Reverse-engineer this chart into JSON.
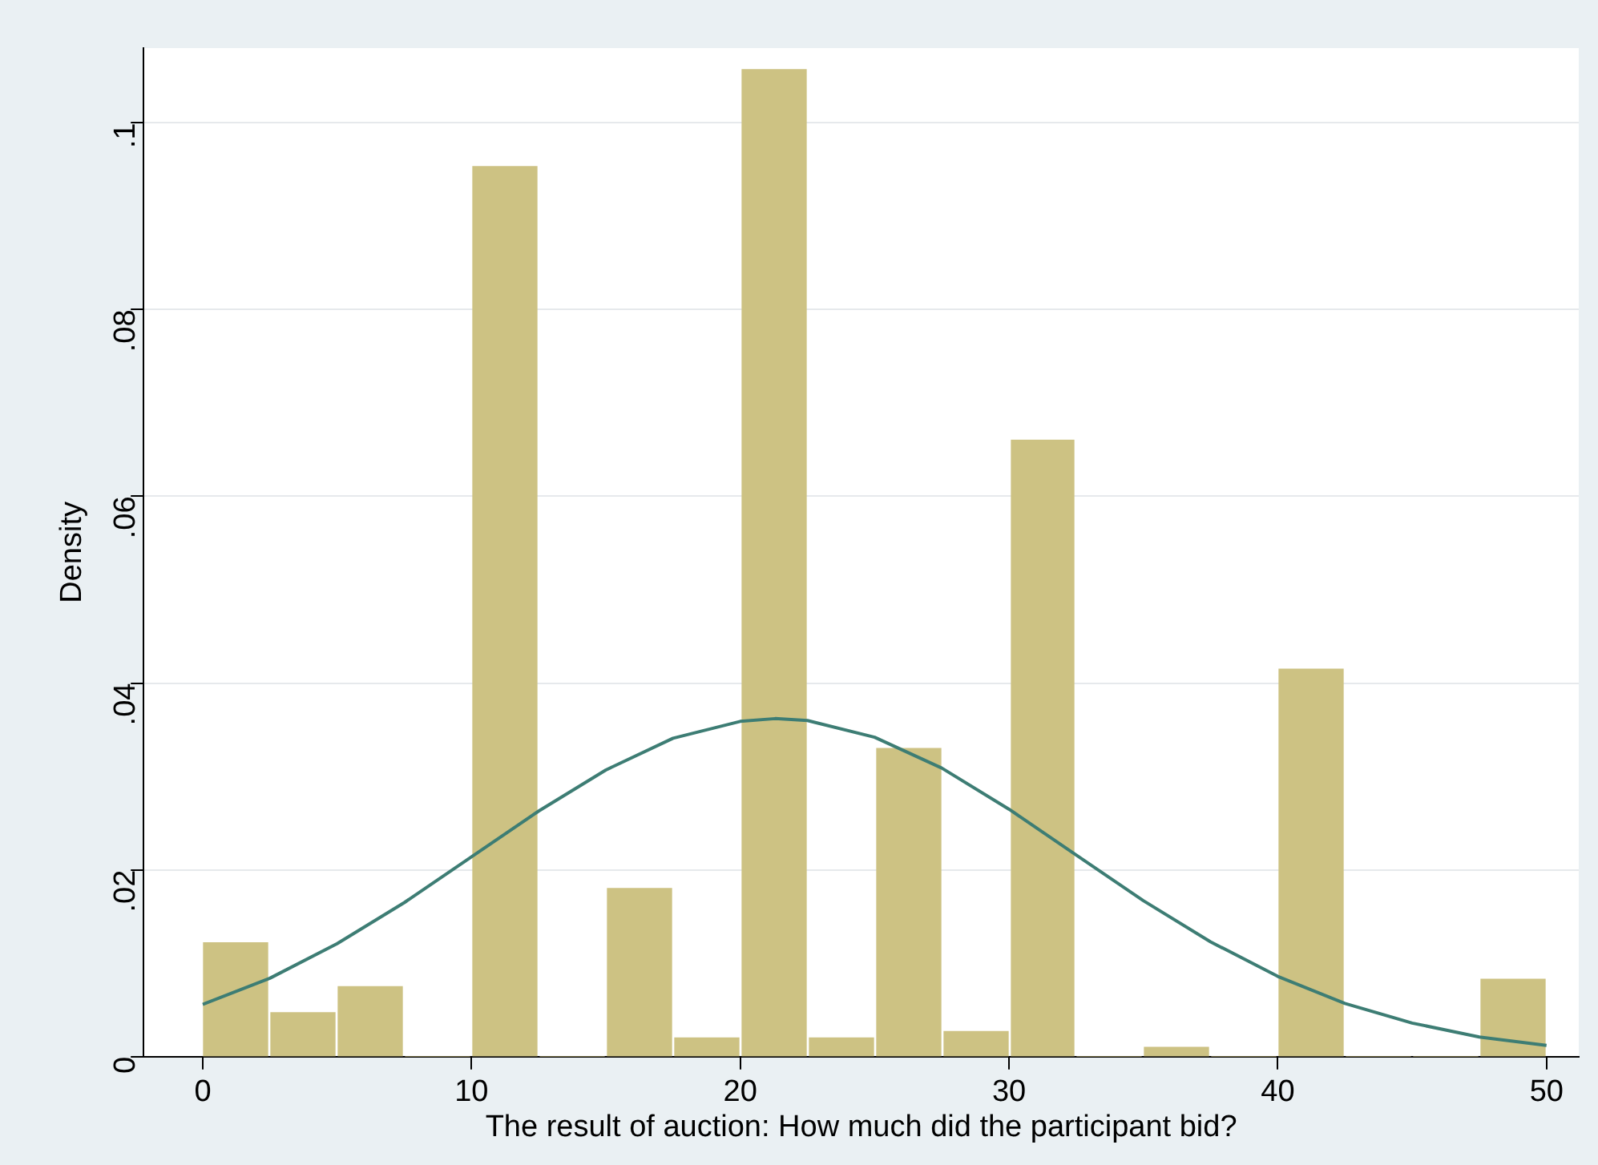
{
  "chart_data": {
    "type": "histogram",
    "xlabel": "The result of auction: How much did the participant bid?",
    "ylabel": "Density",
    "bins": [
      0,
      2.5,
      5,
      7.5,
      10,
      12.5,
      15,
      17.5,
      20,
      22.5,
      25,
      27.5,
      30,
      32.5,
      35,
      37.5,
      40,
      42.5,
      45,
      47.5,
      50
    ],
    "values": [
      0.0122,
      0.0047,
      0.0075,
      0,
      0.0953,
      0,
      0.018,
      0.002,
      0.1057,
      0.002,
      0.033,
      0.0027,
      0.066,
      0,
      0.001,
      0,
      0.0415,
      0,
      0,
      0.0083
    ],
    "color": "#cdc283",
    "series": [
      {
        "type": "line",
        "color": "#3d7d74",
        "x": [
          0,
          2.5,
          5,
          7.5,
          10,
          12.5,
          15,
          17.5,
          20,
          21.3,
          22.5,
          25,
          27.5,
          30,
          32.5,
          35,
          37.5,
          40,
          42.5,
          45,
          47.5,
          50
        ],
        "values": [
          0.0056,
          0.0084,
          0.0121,
          0.0165,
          0.0214,
          0.0263,
          0.0307,
          0.0341,
          0.0359,
          0.0362,
          0.036,
          0.0342,
          0.0309,
          0.0265,
          0.0216,
          0.0167,
          0.0123,
          0.0086,
          0.0057,
          0.0036,
          0.0021,
          0.0012
        ]
      }
    ],
    "xlim": [
      -2.2,
      51.2
    ],
    "xticks": [
      0,
      10,
      20,
      30,
      40,
      50
    ],
    "ylim": [
      0,
      0.108
    ],
    "yticks": [
      0,
      {
        "value": 0.02,
        "label": ".02"
      },
      {
        "value": 0.04,
        "label": ".04"
      },
      {
        "value": 0.06,
        "label": ".06"
      },
      {
        "value": 0.08,
        "label": ".08"
      },
      {
        "value": 0.1,
        "label": ".1"
      }
    ],
    "grid": "y",
    "legend": false,
    "marker": "none"
  }
}
